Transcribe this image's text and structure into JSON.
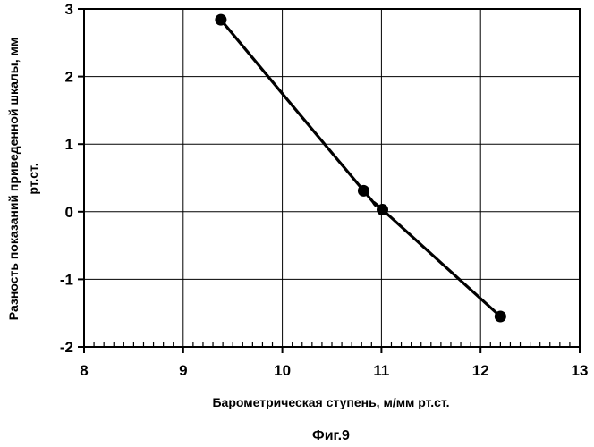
{
  "chart_data": {
    "type": "line",
    "title": "",
    "xlabel": "Барометрическая ступень, м/мм рт.ст.",
    "ylabel_lines": [
      "Разность показаний приведенной шкалы, мм",
      "рт.ст."
    ],
    "caption": "Фиг.9",
    "xlim": [
      8,
      13
    ],
    "ylim": [
      -2,
      3
    ],
    "x_ticks": [
      8,
      9,
      10,
      11,
      12,
      13
    ],
    "y_ticks": [
      -2,
      -1,
      0,
      1,
      2,
      3
    ],
    "x_tick_labels": [
      "8",
      "9",
      "10",
      "11",
      "12",
      "13"
    ],
    "y_tick_labels": [
      "-2",
      "-1",
      "0",
      "1",
      "2",
      "3"
    ],
    "x_minor_per_major": 10,
    "grid": true,
    "series": [
      {
        "x": [
          9.38,
          10.82,
          11.01,
          12.2
        ],
        "y": [
          2.84,
          0.31,
          0.03,
          -1.55
        ]
      }
    ],
    "colors": {
      "line": "#000000",
      "marker": "#000000",
      "grid": "#000000"
    }
  }
}
